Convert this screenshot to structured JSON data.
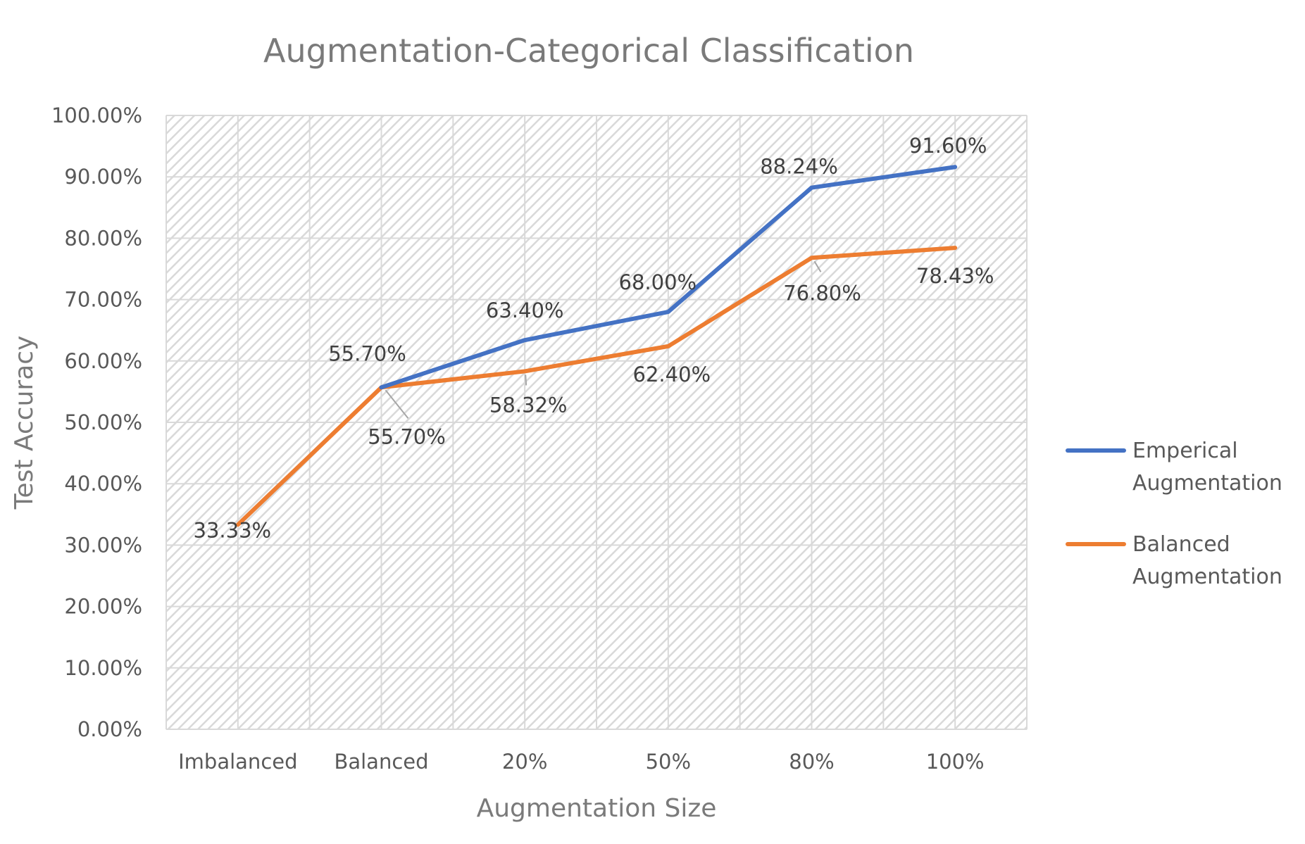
{
  "chart_data": {
    "type": "line",
    "title": "Augmentation-Categorical Classification",
    "xlabel": "Augmentation Size",
    "ylabel": "Test Accuracy",
    "categories": [
      "Imbalanced",
      "Balanced",
      "20%",
      "50%",
      "80%",
      "100%"
    ],
    "yticks": [
      "0.00%",
      "10.00%",
      "20.00%",
      "30.00%",
      "40.00%",
      "50.00%",
      "60.00%",
      "70.00%",
      "80.00%",
      "90.00%",
      "100.00%"
    ],
    "ylim": [
      0,
      100
    ],
    "grid": true,
    "legend_position": "right",
    "series": [
      {
        "name": "Emperical Augmentation",
        "legend_lines": [
          "Emperical",
          "Augmentation"
        ],
        "color": "#4472C4",
        "values": [
          null,
          55.7,
          63.4,
          68.0,
          88.24,
          91.6
        ],
        "labels": [
          "",
          "55.70%",
          "63.40%",
          "68.00%",
          "88.24%",
          "91.60%"
        ]
      },
      {
        "name": "Balanced Augmentation",
        "legend_lines": [
          "Balanced",
          "Augmentation"
        ],
        "color": "#ED7D31",
        "values": [
          33.33,
          55.7,
          58.32,
          62.4,
          76.8,
          78.43
        ],
        "labels": [
          "33.33%",
          "55.70%",
          "58.32%",
          "62.40%",
          "76.80%",
          "78.43%"
        ]
      }
    ]
  }
}
